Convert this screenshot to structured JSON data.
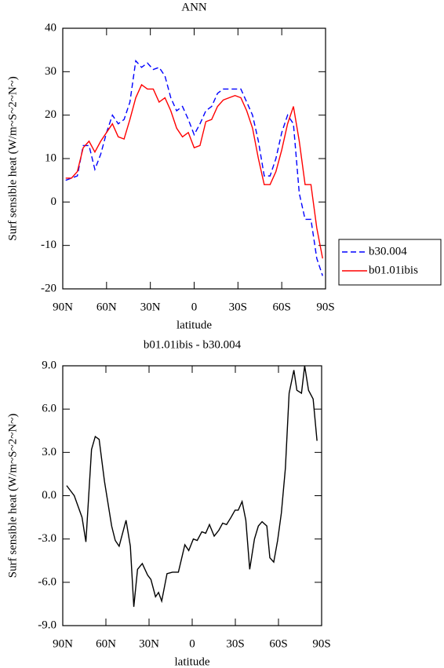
{
  "chart_data": [
    {
      "type": "line",
      "title": "ANN",
      "xlabel": "latitude",
      "ylabel": "Surf sensible heat (W/m~S~2~N~)",
      "x": [
        88,
        84,
        80,
        76,
        72,
        68,
        64,
        60,
        56,
        52,
        48,
        44,
        40,
        36,
        32,
        28,
        24,
        20,
        16,
        12,
        8,
        4,
        0,
        -4,
        -8,
        -12,
        -16,
        -20,
        -24,
        -28,
        -32,
        -36,
        -40,
        -44,
        -48,
        -52,
        -56,
        -60,
        -64,
        -68,
        -72,
        -76,
        -80,
        -84,
        -88
      ],
      "series": [
        {
          "name": "b30.004",
          "color": "#0000ff",
          "dash": true,
          "values": [
            5,
            5.5,
            6,
            13,
            13,
            7.5,
            11,
            16,
            20,
            18,
            19,
            23,
            32.5,
            31,
            32,
            30.5,
            31,
            29,
            24,
            21,
            22,
            19,
            15.5,
            18,
            21,
            22,
            25,
            26,
            26,
            26,
            26,
            23,
            20,
            14,
            6,
            6,
            10,
            16,
            20,
            18,
            2,
            -4,
            -4,
            -13,
            -17
          ]
        },
        {
          "name": "b01.01ibis",
          "color": "#ff0000",
          "dash": false,
          "values": [
            5.5,
            5.5,
            7,
            12.5,
            14,
            11.5,
            14,
            16,
            18,
            15,
            14.5,
            19,
            24,
            27,
            26,
            26,
            23,
            24,
            21,
            17,
            15,
            16,
            12.5,
            13,
            18.5,
            19,
            22,
            23.5,
            24,
            24.5,
            24,
            21,
            17,
            10,
            4,
            4,
            7,
            12,
            18,
            22,
            14,
            4,
            4,
            -6,
            -13
          ]
        }
      ],
      "xlim": [
        90,
        -90
      ],
      "xticks": [
        {
          "value": 90,
          "label": "90N"
        },
        {
          "value": 60,
          "label": "60N"
        },
        {
          "value": 30,
          "label": "30N"
        },
        0,
        {
          "value": -30,
          "label": "30S"
        },
        {
          "value": -60,
          "label": "60S"
        },
        {
          "value": -90,
          "label": "90S"
        }
      ],
      "ylim": [
        -20,
        40
      ],
      "yticks": [
        -20,
        -10,
        0,
        10,
        20,
        30,
        40
      ],
      "legend": "right"
    },
    {
      "type": "line",
      "title": "b01.01ibis - b30.004",
      "xlabel": "latitude",
      "ylabel": "Surf sensible heat (W/m~S~2~N~)",
      "x": [
        87.3,
        82,
        76.6,
        73.9,
        70,
        67.4,
        64.7,
        61,
        56,
        53.5,
        50.8,
        46,
        43,
        40.6,
        38,
        34.7,
        31,
        28.7,
        25.5,
        23.4,
        21.2,
        17.5,
        13.7,
        9.6,
        5.1,
        2.4,
        -0.8,
        -3.5,
        -6.7,
        -9.4,
        -12,
        -15.3,
        -18.5,
        -21.2,
        -23.9,
        -27,
        -29.8,
        -32,
        -34.7,
        -37.3,
        -40,
        -43.3,
        -46,
        -48.6,
        -51.9,
        -54,
        -56.7,
        -59.4,
        -62,
        -64.8,
        -67.4,
        -70.7,
        -72.8,
        -76,
        -78.2,
        -80.9,
        -84.1,
        -86.8
      ],
      "series": [
        {
          "color": "#000000",
          "dash": false,
          "values": [
            0.7,
            0,
            -1.5,
            -3.2,
            3.2,
            4.1,
            3.9,
            1,
            -2.1,
            -3.1,
            -3.5,
            -1.7,
            -3.5,
            -7.7,
            -5.1,
            -4.7,
            -5.5,
            -5.8,
            -7,
            -6.7,
            -7.3,
            -5.4,
            -5.3,
            -5.3,
            -3.4,
            -3.8,
            -3,
            -3.1,
            -2.5,
            -2.6,
            -2,
            -2.8,
            -2.4,
            -1.9,
            -2,
            -1.5,
            -1,
            -1,
            -0.4,
            -1.7,
            -5.1,
            -3,
            -2.1,
            -1.8,
            -2.1,
            -4.3,
            -4.6,
            -3.1,
            -1.2,
            1.9,
            7.1,
            8.7,
            7.3,
            7.1,
            9,
            7.3,
            6.7,
            3.8
          ]
        }
      ],
      "xlim": [
        90,
        -90
      ],
      "xticks": [
        {
          "value": 90,
          "label": "90N"
        },
        {
          "value": 60,
          "label": "60N"
        },
        {
          "value": 30,
          "label": "30N"
        },
        0,
        {
          "value": -30,
          "label": "30S"
        },
        {
          "value": -60,
          "label": "60S"
        },
        {
          "value": -90,
          "label": "90S"
        }
      ],
      "ylim": [
        -9,
        9
      ],
      "yticks": [
        {
          "value": -9,
          "label": "-9.0"
        },
        {
          "value": -6,
          "label": "-6.0"
        },
        {
          "value": -3,
          "label": "-3.0"
        },
        {
          "value": 0,
          "label": "0.0"
        },
        {
          "value": 3,
          "label": "3.0"
        },
        {
          "value": 6,
          "label": "6.0"
        },
        {
          "value": 9,
          "label": "9.0"
        }
      ]
    }
  ]
}
